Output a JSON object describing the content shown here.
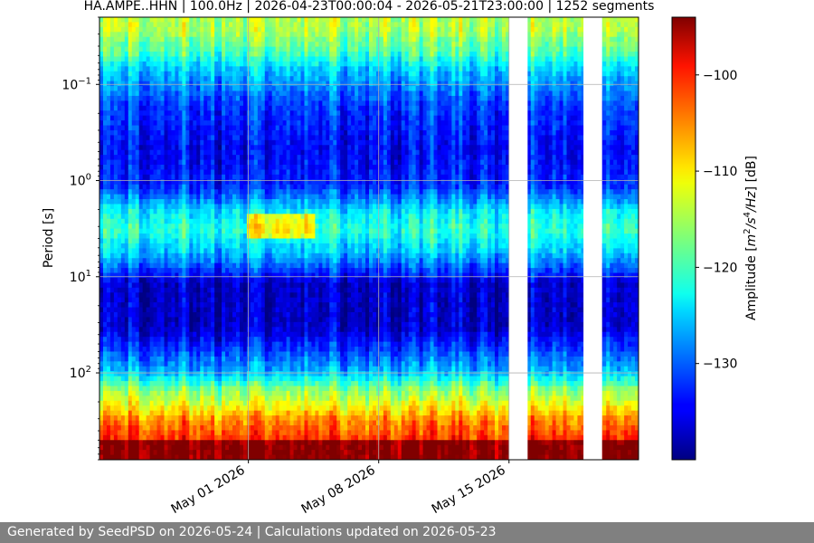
{
  "chart_data": {
    "type": "heatmap",
    "title": "HA.AMPE..HHN | 100.0Hz | 2026-04-23T00:00:04 - 2026-05-21T23:00:00 | 1252 segments",
    "ylabel": "Period [s]",
    "colorbar_label": "Amplitude [m^2/s^4/Hz] [dB]",
    "x_start": "2026-04-23",
    "x_end": "2026-05-21",
    "x_ticks": [
      "May 01 2026",
      "May 08 2026",
      "May 15 2026"
    ],
    "x_tick_dates": [
      "2026-05-01",
      "2026-05-08",
      "2026-05-15"
    ],
    "y_scale": "log",
    "y_inverted": true,
    "y_ticks": [
      {
        "base": "10",
        "exp": "−1",
        "value": 0.1
      },
      {
        "base": "10",
        "exp": "0",
        "value": 1
      },
      {
        "base": "10",
        "exp": "1",
        "value": 10
      },
      {
        "base": "10",
        "exp": "2",
        "value": 100
      }
    ],
    "ylim": [
      0.02,
      800
    ],
    "colorbar_ticks": [
      "−100",
      "−110",
      "−120",
      "−130"
    ],
    "colorbar_tick_values": [
      -100,
      -110,
      -120,
      -130
    ],
    "colorbar_range": [
      -140,
      -94
    ],
    "colormap": "jet",
    "gaps": [
      {
        "start": "2026-05-15",
        "end": "2026-05-16"
      },
      {
        "start": "2026-05-19",
        "end": "2026-05-20"
      }
    ],
    "grid": true
  },
  "footer": "Generated by SeedPSD on 2026-05-24 | Calculations updated on 2026-05-23"
}
